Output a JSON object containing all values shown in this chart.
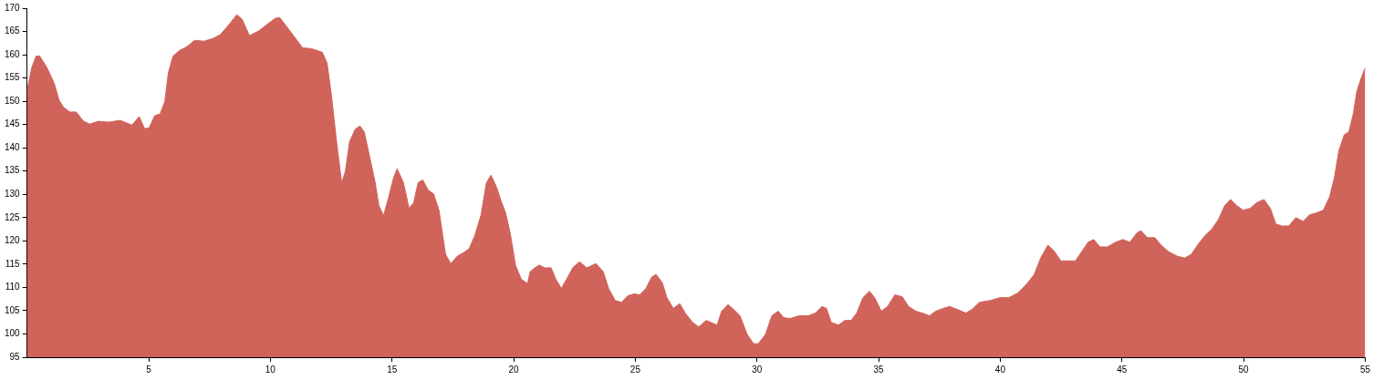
{
  "chart_data": {
    "type": "area",
    "color": "#d0635a",
    "x": [
      0,
      0.19,
      0.37,
      0.52,
      0.82,
      1.12,
      1.31,
      1.5,
      1.76,
      2.02,
      2.32,
      2.58,
      2.92,
      3.37,
      3.82,
      4.31,
      4.61,
      4.83,
      5.02,
      5.25,
      5.47,
      5.66,
      5.81,
      6.0,
      6.26,
      6.56,
      6.89,
      7.27,
      7.64,
      7.94,
      8.24,
      8.62,
      8.84,
      9.14,
      9.52,
      9.89,
      10.19,
      10.38,
      10.75,
      11.32,
      11.69,
      12.14,
      12.33,
      12.51,
      12.74,
      12.93,
      13.08,
      13.26,
      13.49,
      13.68,
      13.86,
      14.05,
      14.31,
      14.46,
      14.65,
      14.87,
      15.06,
      15.21,
      15.47,
      15.7,
      15.89,
      16.07,
      16.26,
      16.49,
      16.71,
      16.93,
      17.2,
      17.42,
      17.68,
      17.95,
      18.17,
      18.4,
      18.66,
      18.88,
      19.07,
      19.3,
      19.48,
      19.67,
      19.86,
      20.08,
      20.31,
      20.57,
      20.68,
      20.87,
      21.06,
      21.28,
      21.54,
      21.73,
      21.96,
      22.18,
      22.44,
      22.71,
      23.0,
      23.38,
      23.68,
      23.9,
      24.17,
      24.43,
      24.69,
      24.95,
      25.18,
      25.44,
      25.67,
      25.85,
      26.11,
      26.3,
      26.56,
      26.83,
      27.05,
      27.35,
      27.61,
      27.91,
      28.1,
      28.36,
      28.55,
      28.81,
      29.04,
      29.3,
      29.6,
      29.86,
      30.05,
      30.35,
      30.61,
      30.87,
      31.1,
      31.36,
      31.73,
      32.11,
      32.41,
      32.67,
      32.86,
      33.05,
      33.35,
      33.61,
      33.87,
      34.1,
      34.36,
      34.62,
      34.84,
      35.11,
      35.37,
      35.67,
      35.97,
      36.23,
      36.53,
      36.79,
      37.09,
      37.35,
      37.65,
      37.92,
      38.22,
      38.59,
      38.85,
      39.15,
      39.6,
      39.98,
      40.35,
      40.73,
      41.1,
      41.4,
      41.66,
      41.96,
      42.23,
      42.49,
      42.79,
      43.09,
      43.35,
      43.61,
      43.84,
      44.1,
      44.4,
      44.74,
      45.04,
      45.33,
      45.6,
      45.78,
      46.05,
      46.35,
      46.61,
      46.91,
      47.28,
      47.58,
      47.85,
      48.11,
      48.41,
      48.71,
      48.97,
      49.23,
      49.46,
      49.72,
      49.98,
      50.28,
      50.54,
      50.84,
      51.1,
      51.33,
      51.59,
      51.86,
      52.15,
      52.45,
      52.72,
      52.98,
      53.28,
      53.54,
      53.73,
      53.92,
      54.14,
      54.33,
      54.51,
      54.66,
      54.85,
      55.0
    ],
    "values": [
      152.2,
      157.2,
      159.7,
      159.7,
      157.2,
      153.8,
      150.3,
      148.7,
      147.7,
      147.7,
      145.7,
      145.1,
      145.7,
      145.5,
      145.9,
      144.9,
      146.7,
      144.1,
      144.3,
      146.9,
      147.3,
      149.9,
      156.2,
      159.7,
      160.9,
      161.7,
      163.1,
      162.9,
      163.5,
      164.3,
      166.1,
      168.6,
      167.6,
      164.1,
      165.1,
      166.6,
      167.8,
      168.0,
      165.5,
      161.5,
      161.3,
      160.5,
      158.2,
      151.3,
      140.4,
      132.5,
      134.9,
      141.4,
      144.0,
      144.7,
      143.4,
      138.8,
      132.5,
      127.6,
      125.4,
      129.5,
      133.5,
      135.5,
      132.5,
      127.0,
      128.2,
      132.5,
      133.1,
      130.9,
      130.1,
      126.6,
      117.1,
      115.1,
      116.7,
      117.5,
      118.3,
      121.1,
      125.6,
      132.5,
      134.1,
      131.5,
      128.6,
      126.0,
      121.6,
      114.7,
      111.8,
      110.8,
      113.4,
      114.2,
      114.8,
      114.2,
      114.2,
      111.8,
      109.8,
      111.8,
      114.3,
      115.5,
      114.2,
      115.1,
      113.4,
      109.8,
      107.2,
      106.8,
      108.2,
      108.6,
      108.4,
      109.8,
      112.2,
      112.8,
      111.0,
      107.8,
      105.5,
      106.5,
      104.5,
      102.5,
      101.5,
      102.9,
      102.5,
      101.9,
      104.9,
      106.3,
      105.3,
      103.9,
      99.9,
      97.9,
      97.9,
      99.9,
      103.9,
      104.9,
      103.5,
      103.3,
      103.9,
      103.9,
      104.5,
      105.9,
      105.5,
      102.5,
      101.9,
      102.9,
      102.9,
      104.5,
      107.8,
      109.2,
      107.8,
      104.9,
      105.9,
      108.4,
      108.0,
      105.9,
      104.9,
      104.5,
      103.9,
      104.9,
      105.5,
      105.9,
      105.3,
      104.5,
      105.3,
      106.8,
      107.2,
      107.8,
      107.8,
      108.8,
      110.8,
      112.8,
      116.3,
      119.1,
      117.7,
      115.7,
      115.7,
      115.7,
      117.7,
      119.7,
      120.3,
      118.7,
      118.7,
      119.7,
      120.3,
      119.7,
      121.6,
      122.2,
      120.7,
      120.7,
      119.1,
      117.7,
      116.7,
      116.3,
      117.1,
      119.1,
      121.1,
      122.6,
      124.6,
      127.6,
      128.9,
      127.6,
      126.6,
      127.0,
      128.2,
      128.9,
      127.0,
      123.6,
      123.2,
      123.2,
      125.0,
      124.2,
      125.6,
      126.0,
      126.6,
      129.5,
      133.5,
      139.4,
      142.8,
      143.4,
      147.3,
      152.2,
      155.2,
      157.2
    ],
    "xlim": [
      0,
      55
    ],
    "xticks": [
      5,
      10,
      15,
      20,
      25,
      30,
      35,
      40,
      45,
      50,
      55
    ],
    "ylim": [
      95,
      170
    ],
    "yticks": [
      95,
      100,
      105,
      110,
      115,
      120,
      125,
      130,
      135,
      140,
      145,
      150,
      155,
      160,
      165,
      170
    ],
    "grid": false,
    "legend": false,
    "marker": "none"
  }
}
